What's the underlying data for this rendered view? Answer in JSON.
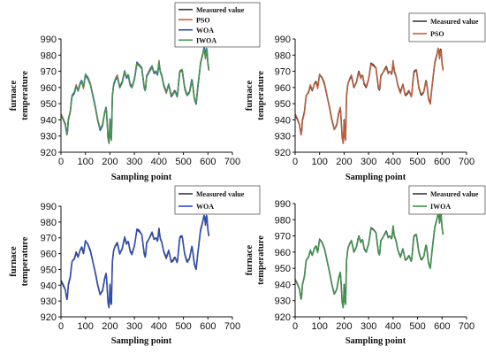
{
  "figure": {
    "background": "#ffffff"
  },
  "chart_data": [
    {
      "type": "line",
      "xlabel": "Sampling point",
      "ylabel": [
        "furnace",
        "temperature"
      ],
      "xlim": [
        0,
        700
      ],
      "ylim": [
        920,
        990
      ],
      "xticks": [
        0,
        100,
        200,
        300,
        400,
        500,
        600,
        700
      ],
      "yticks": [
        920,
        930,
        940,
        950,
        960,
        970,
        980,
        990
      ],
      "grid": false,
      "legend_position": "top-right",
      "series": [
        {
          "name": "Measured value",
          "color": "#3a3a3a",
          "offset": 0
        },
        {
          "name": "PSO",
          "color": "#c8603a",
          "offset": 0.8
        },
        {
          "name": "WOA",
          "color": "#2d4fc4",
          "offset": -0.8
        },
        {
          "name": "IWOA",
          "color": "#3f9a4e",
          "offset": 0.4
        }
      ]
    },
    {
      "type": "line",
      "xlabel": "Sampling point",
      "ylabel": [
        "furnace",
        "temperature"
      ],
      "xlim": [
        0,
        700
      ],
      "ylim": [
        920,
        990
      ],
      "xticks": [
        0,
        100,
        200,
        300,
        400,
        500,
        600,
        700
      ],
      "yticks": [
        920,
        930,
        940,
        950,
        960,
        970,
        980,
        990
      ],
      "grid": false,
      "legend_position": "top-right",
      "series": [
        {
          "name": "Measured value",
          "color": "#3a3a3a",
          "offset": 0
        },
        {
          "name": "PSO",
          "color": "#c8603a",
          "offset": 0.8
        }
      ]
    },
    {
      "type": "line",
      "xlabel": "Sampling point",
      "ylabel": [
        "furnace",
        "temperature"
      ],
      "xlim": [
        0,
        700
      ],
      "ylim": [
        920,
        990
      ],
      "xticks": [
        0,
        100,
        200,
        300,
        400,
        500,
        600,
        700
      ],
      "yticks": [
        920,
        930,
        940,
        950,
        960,
        970,
        980,
        990
      ],
      "grid": false,
      "legend_position": "top-right",
      "series": [
        {
          "name": "Measured value",
          "color": "#3a3a3a",
          "offset": 0
        },
        {
          "name": "WOA",
          "color": "#2d4fc4",
          "offset": -0.8
        }
      ]
    },
    {
      "type": "line",
      "xlabel": "Sampling point",
      "ylabel": [
        "furnace",
        "temperature"
      ],
      "xlim": [
        0,
        700
      ],
      "ylim": [
        920,
        990
      ],
      "xticks": [
        0,
        100,
        200,
        300,
        400,
        500,
        600,
        700
      ],
      "yticks": [
        920,
        930,
        940,
        950,
        960,
        970,
        980,
        990
      ],
      "grid": false,
      "legend_position": "top-right",
      "series": [
        {
          "name": "Measured value",
          "color": "#3a3a3a",
          "offset": 0
        },
        {
          "name": "IWOA",
          "color": "#3f9a4e",
          "offset": 0.4
        }
      ]
    }
  ],
  "measured_profile": {
    "x": [
      0,
      10,
      18,
      25,
      30,
      38,
      45,
      55,
      62,
      70,
      78,
      85,
      92,
      100,
      110,
      120,
      130,
      140,
      150,
      160,
      170,
      178,
      185,
      192,
      197,
      200,
      203,
      206,
      210,
      215,
      222,
      230,
      240,
      250,
      260,
      268,
      275,
      282,
      290,
      300,
      310,
      320,
      330,
      340,
      345,
      350,
      358,
      365,
      372,
      380,
      388,
      395,
      400,
      405,
      412,
      420,
      430,
      440,
      450,
      458,
      465,
      475,
      485,
      495,
      505,
      515,
      525,
      535,
      545,
      552,
      560,
      570,
      580,
      585,
      590,
      595,
      600,
      605
    ],
    "y": [
      943,
      940,
      937,
      930,
      940,
      945,
      955,
      957,
      961,
      958,
      962,
      964,
      960,
      968,
      966,
      962,
      955,
      948,
      940,
      934,
      937,
      944,
      948,
      929,
      925,
      940,
      930,
      928,
      955,
      962,
      965,
      967,
      960,
      963,
      970,
      966,
      968,
      962,
      960,
      965,
      975,
      974,
      972,
      960,
      958,
      967,
      969,
      971,
      973,
      969,
      970,
      968,
      976,
      970,
      967,
      961,
      957,
      962,
      955,
      956,
      958,
      954,
      970,
      971,
      960,
      955,
      957,
      965,
      953,
      950,
      962,
      975,
      981,
      985,
      978,
      985,
      975,
      970
    ]
  }
}
